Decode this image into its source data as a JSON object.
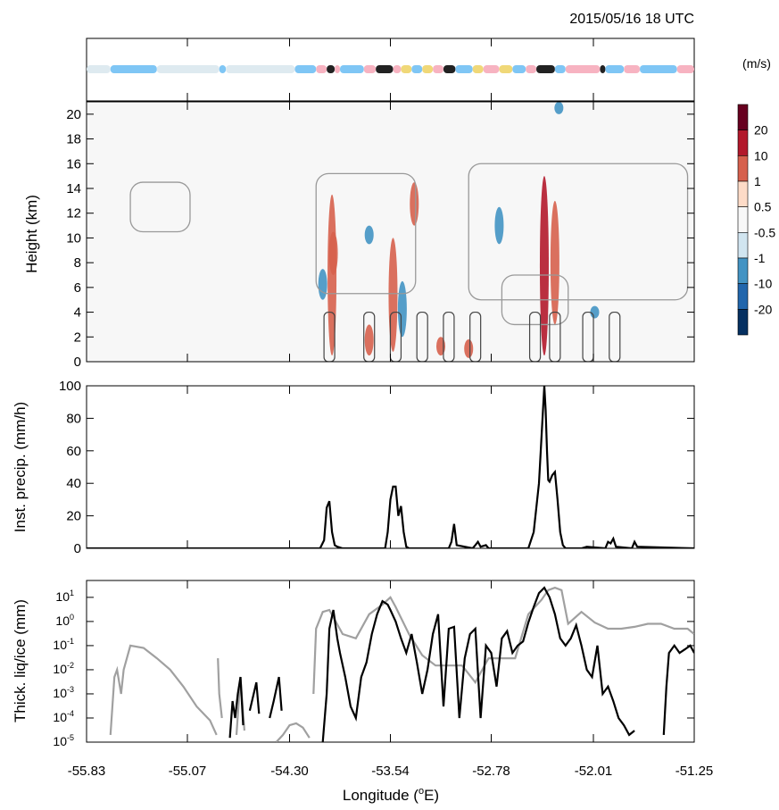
{
  "timestamp": "2015/05/16 18 UTC",
  "xlabel": "Longitude (",
  "xlabel_sup": "o",
  "xlabel_end": "E)",
  "xticks": [
    "-55.83",
    "-55.07",
    "-54.30",
    "-53.54",
    "-52.78",
    "-52.01",
    "-51.25"
  ],
  "xlim": [
    -55.83,
    -51.25
  ],
  "colorbar": {
    "unit": "(m/s)",
    "labels": [
      "20",
      "10",
      "1",
      "0.5",
      "-0.5",
      "-1",
      "-10",
      "-20"
    ],
    "colors": [
      "#67001f",
      "#b2182b",
      "#d6604d",
      "#fddbc7",
      "#f7f7f7",
      "#d1e5f0",
      "#4393c3",
      "#2166ac",
      "#053061"
    ]
  },
  "category_strip": {
    "colors": {
      "clear": "#deeaf0",
      "shallow": "#7fc6f5",
      "deep": "#f7b3c1",
      "convective": "#222222",
      "mixed": "#f0d878"
    },
    "segments": [
      [
        -55.83,
        -55.65,
        "clear"
      ],
      [
        -55.65,
        -55.3,
        "shallow"
      ],
      [
        -55.3,
        -54.83,
        "clear"
      ],
      [
        -54.83,
        -54.78,
        "shallow"
      ],
      [
        -54.78,
        -54.26,
        "clear"
      ],
      [
        -54.26,
        -54.1,
        "shallow"
      ],
      [
        -54.1,
        -54.02,
        "deep"
      ],
      [
        -54.02,
        -53.96,
        "convective"
      ],
      [
        -53.96,
        -53.92,
        "deep"
      ],
      [
        -53.92,
        -53.74,
        "shallow"
      ],
      [
        -53.74,
        -53.65,
        "deep"
      ],
      [
        -53.65,
        -53.52,
        "convective"
      ],
      [
        -53.52,
        -53.46,
        "deep"
      ],
      [
        -53.46,
        -53.38,
        "mixed"
      ],
      [
        -53.38,
        -53.3,
        "shallow"
      ],
      [
        -53.3,
        -53.22,
        "mixed"
      ],
      [
        -53.22,
        -53.14,
        "deep"
      ],
      [
        -53.14,
        -53.05,
        "convective"
      ],
      [
        -53.05,
        -52.92,
        "shallow"
      ],
      [
        -52.92,
        -52.84,
        "mixed"
      ],
      [
        -52.84,
        -52.72,
        "deep"
      ],
      [
        -52.72,
        -52.62,
        "mixed"
      ],
      [
        -52.62,
        -52.52,
        "shallow"
      ],
      [
        -52.52,
        -52.44,
        "deep"
      ],
      [
        -52.44,
        -52.3,
        "convective"
      ],
      [
        -52.3,
        -52.22,
        "shallow"
      ],
      [
        -52.22,
        -51.96,
        "deep"
      ],
      [
        -51.96,
        -51.92,
        "convective"
      ],
      [
        -51.92,
        -51.78,
        "shallow"
      ],
      [
        -51.78,
        -51.66,
        "deep"
      ],
      [
        -51.66,
        -51.38,
        "shallow"
      ],
      [
        -51.38,
        -51.25,
        "deep"
      ]
    ]
  },
  "chart_data": [
    {
      "type": "heatmap",
      "ylabel": "Height (km)",
      "ylim": [
        0,
        21
      ],
      "yticks": [
        "0",
        "2",
        "4",
        "6",
        "8",
        "10",
        "12",
        "14",
        "16",
        "18",
        "20"
      ],
      "updrafts": [
        {
          "lon": -53.98,
          "zmin": 0.5,
          "zmax": 13.5,
          "w": 10
        },
        {
          "lon": -53.97,
          "zmin": 7.0,
          "zmax": 10.5,
          "w": 10
        },
        {
          "lon": -53.52,
          "zmin": 0.8,
          "zmax": 10.0,
          "w": 10
        },
        {
          "lon": -53.36,
          "zmin": 11.0,
          "zmax": 14.5,
          "w": 10
        },
        {
          "lon": -52.38,
          "zmin": 0.5,
          "zmax": 15.0,
          "w": 20
        },
        {
          "lon": -52.3,
          "zmin": 3.0,
          "zmax": 13.0,
          "w": 10
        },
        {
          "lon": -53.7,
          "zmin": 0.5,
          "zmax": 3.0,
          "w": 10
        },
        {
          "lon": -53.16,
          "zmin": 0.5,
          "zmax": 2.0,
          "w": 10
        },
        {
          "lon": -52.95,
          "zmin": 0.3,
          "zmax": 1.8,
          "w": 10
        }
      ],
      "downdrafts": [
        {
          "lon": -54.05,
          "zmin": 5.0,
          "zmax": 7.5,
          "w": -10
        },
        {
          "lon": -53.7,
          "zmin": 9.5,
          "zmax": 11.0,
          "w": -10
        },
        {
          "lon": -53.45,
          "zmin": 2.0,
          "zmax": 6.5,
          "w": -10
        },
        {
          "lon": -52.72,
          "zmin": 9.5,
          "zmax": 12.5,
          "w": -10
        },
        {
          "lon": -52.27,
          "zmin": 20.0,
          "zmax": 21.0,
          "w": -10
        },
        {
          "lon": -52.0,
          "zmin": 3.5,
          "zmax": 4.5,
          "w": -10
        }
      ]
    },
    {
      "type": "line",
      "ylabel": "Inst. precip. (mm/h)",
      "ylim": [
        0,
        100
      ],
      "yticks": [
        "0",
        "20",
        "40",
        "60",
        "80",
        "100"
      ],
      "series": [
        {
          "x": [
            -55.83,
            -54.07,
            -54.04,
            -54.02,
            -54.0,
            -53.98,
            -53.96,
            -53.94,
            -53.9,
            -53.58,
            -53.56,
            -53.54,
            -53.52,
            -53.5,
            -53.48,
            -53.46,
            -53.44,
            -53.42,
            -53.4,
            -53.1,
            -53.08,
            -53.06,
            -53.04,
            -52.92,
            -52.9,
            -52.88,
            -52.86,
            -52.82,
            -52.8,
            -52.78,
            -52.5,
            -52.46,
            -52.42,
            -52.4,
            -52.38,
            -52.37,
            -52.36,
            -52.35,
            -52.34,
            -52.32,
            -52.3,
            -52.28,
            -52.26,
            -52.24,
            -52.22,
            -52.1,
            -52.06,
            -51.92,
            -51.9,
            -51.88,
            -51.86,
            -51.84,
            -51.72,
            -51.7,
            -51.68,
            -51.25
          ],
          "y": [
            0,
            0,
            5,
            25,
            29,
            10,
            2,
            1,
            0,
            0,
            10,
            30,
            38,
            38,
            20,
            26,
            10,
            1,
            0,
            0,
            4,
            15,
            2,
            0,
            2,
            4,
            1,
            2,
            0,
            0,
            0,
            10,
            40,
            70,
            100,
            85,
            60,
            42,
            41,
            45,
            47,
            30,
            10,
            2,
            0,
            0,
            1,
            0,
            4,
            3,
            6,
            1,
            0,
            4,
            1,
            0
          ]
        }
      ]
    },
    {
      "type": "line",
      "ylabel": "Thick. liq/ice (mm)",
      "yscale": "log",
      "ylim": [
        1e-05,
        50
      ],
      "yticks": [
        "10-5",
        "10-4",
        "10-3",
        "10-2",
        "10-1",
        "100",
        "101"
      ],
      "series": [
        {
          "name": "ice",
          "color": "#a0a0a0",
          "segments": [
            {
              "x": [
                -55.65,
                -55.62,
                -55.6,
                -55.57,
                -55.55,
                -55.5,
                -55.4,
                -55.3,
                -55.2,
                -55.1,
                -55.0,
                -54.9,
                -54.85
              ],
              "y": [
                2e-05,
                0.005,
                0.01,
                0.001,
                0.01,
                0.1,
                0.08,
                0.03,
                0.01,
                0.002,
                0.0003,
                8e-05,
                2e-05
              ]
            },
            {
              "x": [
                -54.84,
                -54.83,
                -54.81
              ],
              "y": [
                0.03,
                0.001,
                0.0001
              ]
            },
            {
              "x": [
                -54.7,
                -54.67,
                -54.64
              ],
              "y": [
                2e-05,
                0.005,
                3e-05
              ]
            },
            {
              "x": [
                -54.4,
                -54.35,
                -54.3,
                -54.25,
                -54.2,
                -54.15
              ],
              "y": [
                1e-05,
                2e-05,
                5e-05,
                6e-05,
                4e-05,
                1.5e-05
              ]
            },
            {
              "x": [
                -54.12,
                -54.1,
                -54.05,
                -54.0,
                -53.9,
                -53.8,
                -53.7,
                -53.6,
                -53.54,
                -53.5,
                -53.4,
                -53.3,
                -53.2,
                -53.0,
                -52.9,
                -52.8,
                -52.7,
                -52.6,
                -52.5,
                -52.4,
                -52.35,
                -52.3,
                -52.25,
                -52.2,
                -52.1,
                -52.0,
                -51.9,
                -51.8,
                -51.7,
                -51.6,
                -51.5,
                -51.4,
                -51.3,
                -51.25
              ],
              "y": [
                0.001,
                0.5,
                2.5,
                3,
                0.3,
                0.2,
                2,
                5,
                10,
                4,
                0.3,
                0.04,
                0.015,
                0.015,
                0.003,
                0.03,
                0.03,
                0.03,
                2,
                8,
                20,
                25,
                20,
                0.8,
                2.5,
                0.9,
                0.5,
                0.5,
                0.6,
                0.8,
                0.8,
                0.5,
                0.5,
                0.3
              ]
            }
          ]
        },
        {
          "name": "liquid",
          "color": "#000000",
          "segments": [
            {
              "x": [
                -54.75,
                -54.73,
                -54.71,
                -54.69,
                -54.67,
                -54.65
              ],
              "y": [
                1.5e-05,
                0.0005,
                0.0001,
                0.001,
                0.005,
                5e-05
              ]
            },
            {
              "x": [
                -54.6,
                -54.57,
                -54.55,
                -54.53
              ],
              "y": [
                0.0002,
                0.001,
                0.003,
                0.00015
              ]
            },
            {
              "x": [
                -54.45,
                -54.42,
                -54.38,
                -54.36
              ],
              "y": [
                0.0001,
                0.0005,
                0.005,
                0.0002
              ]
            },
            {
              "x": [
                -54.05,
                -54.02,
                -54.0,
                -53.97,
                -53.94,
                -53.92,
                -53.88,
                -53.84,
                -53.8,
                -53.76,
                -53.72,
                -53.68,
                -53.64,
                -53.6,
                -53.56,
                -53.54,
                -53.5,
                -53.46,
                -53.42,
                -53.38,
                -53.34,
                -53.3,
                -53.26,
                -53.22,
                -53.18,
                -53.14,
                -53.1,
                -53.06,
                -53.02,
                -52.98,
                -52.94,
                -52.9,
                -52.86,
                -52.82,
                -52.78,
                -52.74,
                -52.7,
                -52.66,
                -52.62,
                -52.58,
                -52.54,
                -52.5,
                -52.46,
                -52.42,
                -52.38,
                -52.34,
                -52.3,
                -52.26,
                -52.22,
                -52.18,
                -52.14,
                -52.1,
                -52.06,
                -52.02,
                -51.98,
                -51.94,
                -51.9,
                -51.86,
                -51.82,
                -51.78,
                -51.74,
                -51.7
              ],
              "y": [
                1e-05,
                0.001,
                0.5,
                3,
                0.2,
                0.05,
                0.005,
                0.0003,
                0.0001,
                0.005,
                0.02,
                0.3,
                2,
                7,
                5,
                3,
                1,
                0.2,
                0.05,
                0.3,
                0.02,
                0.001,
                0.01,
                0.3,
                2,
                0.0003,
                0.5,
                0.6,
                0.0001,
                0.03,
                0.3,
                0.5,
                0.0001,
                0.1,
                0.05,
                0.002,
                0.2,
                0.4,
                0.05,
                0.1,
                0.15,
                0.9,
                4,
                15,
                25,
                10,
                2,
                0.2,
                0.1,
                0.2,
                0.7,
                0.1,
                0.01,
                0.005,
                0.1,
                0.001,
                0.002,
                0.0005,
                0.0001,
                5e-05,
                2e-05,
                3e-05
              ]
            },
            {
              "x": [
                -51.48,
                -51.46,
                -51.44,
                -51.4,
                -51.36,
                -51.32,
                -51.28,
                -51.25
              ],
              "y": [
                2e-05,
                0.002,
                0.05,
                0.1,
                0.05,
                0.07,
                0.1,
                0.05
              ]
            }
          ]
        }
      ]
    }
  ]
}
